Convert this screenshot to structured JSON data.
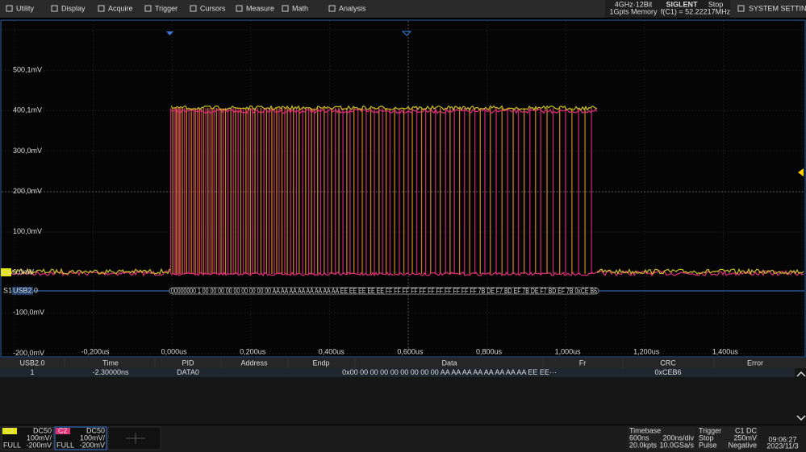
{
  "menu": [
    "Utility",
    "Display",
    "Acquire",
    "Trigger",
    "Cursors",
    "Measure",
    "Math",
    "Analysis"
  ],
  "status": {
    "spec": "4GHz·12Bit",
    "memory": "1Gpts Memory",
    "brand": "SIGLENT",
    "state": "Stop",
    "frequency": "f(C1) = 52.22217MHz",
    "settings": "SYSTEM SETTINGS"
  },
  "y_labels": [
    "500,1mV",
    "400,1mV",
    "300,0mV",
    "200,0mV",
    "100,0mV",
    "0,0mV",
    "-100,0mV",
    "-200,0mV"
  ],
  "x_labels": [
    "-0,200us",
    "0,000us",
    "0,200us",
    "0,400us",
    "0,600us",
    "0,800us",
    "1,000us",
    "1,200us",
    "1,400us"
  ],
  "channel_marker": "C1",
  "decode": {
    "slot": "S1",
    "protocol": "USB2.0",
    "bus": "00000000 1 00 00 00 00 00 00 00 00 00 AA AA AA AA AA AA AA AA EE EE EE EE EE FF FF FF FF FF FF FF FF FF FF FF 7B DE F7 BD EF 7B DE F7 BD EF 7B 0xCE B6"
  },
  "table": {
    "columns": [
      "USB2.0",
      "Time",
      "PID",
      "Address",
      "Endp",
      "Data",
      "Fr",
      "CRC",
      "Error"
    ],
    "rows": [
      {
        "index": "1",
        "time": "-2.30000ns",
        "pid": "DATA0",
        "data": "0x00 00 00 00 00 00 00 00 00 AA AA AA AA AA AA AA AA EE EE···",
        "crc": "0xCEB6"
      }
    ]
  },
  "channels": [
    {
      "name": "C1",
      "coupling": "DC50",
      "scale": "100mV/",
      "bandwidth": "FULL",
      "offset": "-200mV"
    },
    {
      "name": "C2",
      "coupling": "DC50",
      "scale": "100mV/",
      "bandwidth": "FULL",
      "offset": "-200mV"
    }
  ],
  "timebase": {
    "title": "Timebase",
    "delay": "600ns",
    "scale": "200ns/div",
    "points": "20.0kpts",
    "rate": "10.0GSa/s"
  },
  "trigger": {
    "title": "Trigger",
    "source": "C1 DC",
    "state": "Stop",
    "level": "250mV",
    "type": "Pulse",
    "slope": "Negative"
  },
  "clock": {
    "time": "09:06:27",
    "date": "2023/11/3"
  }
}
